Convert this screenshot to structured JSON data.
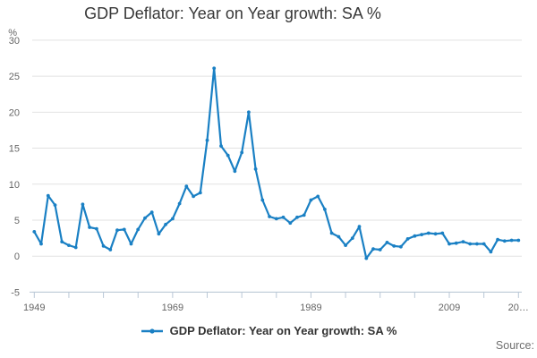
{
  "title": "GDP Deflator: Year on Year growth: SA %",
  "legend": {
    "label": "GDP Deflator: Year on Year growth: SA %"
  },
  "source_label": "Source:",
  "y_axis": {
    "unit": "%",
    "ticks": [
      30,
      25,
      20,
      15,
      10,
      5,
      0,
      -5
    ]
  },
  "x_axis": {
    "tick_interval_years": 5,
    "labels": [
      {
        "text": "1949",
        "year": 1949
      },
      {
        "text": "1969",
        "year": 1969
      },
      {
        "text": "1989",
        "year": 1989
      },
      {
        "text": "2009",
        "year": 2009
      },
      {
        "text": "20…",
        "year": 2019
      }
    ]
  },
  "colors": {
    "line": "#1a80c4",
    "grid": "#e2e2e2",
    "axis": "#b9c7d6",
    "tick_text": "#666666",
    "title_text": "#383838",
    "legend_text": "#333333",
    "source_text": "#6e6e6e"
  },
  "chart_data": {
    "type": "line",
    "title": "GDP Deflator: Year on Year growth: SA %",
    "xlabel": "",
    "ylabel": "%",
    "ylim": [
      -5,
      30
    ],
    "xlim": [
      1949,
      2019
    ],
    "grid": true,
    "legend_position": "bottom",
    "x": [
      1949,
      1950,
      1951,
      1952,
      1953,
      1954,
      1955,
      1956,
      1957,
      1958,
      1959,
      1960,
      1961,
      1962,
      1963,
      1964,
      1965,
      1966,
      1967,
      1968,
      1969,
      1970,
      1971,
      1972,
      1973,
      1974,
      1975,
      1976,
      1977,
      1978,
      1979,
      1980,
      1981,
      1982,
      1983,
      1984,
      1985,
      1986,
      1987,
      1988,
      1989,
      1990,
      1991,
      1992,
      1993,
      1994,
      1995,
      1996,
      1997,
      1998,
      1999,
      2000,
      2001,
      2002,
      2003,
      2004,
      2005,
      2006,
      2007,
      2008,
      2009,
      2010,
      2011,
      2012,
      2013,
      2014,
      2015,
      2016,
      2017,
      2018,
      2019
    ],
    "series": [
      {
        "name": "GDP Deflator: Year on Year growth: SA %",
        "values": [
          3.4,
          1.7,
          8.4,
          7.1,
          2.0,
          1.5,
          1.2,
          7.2,
          4.0,
          3.8,
          1.4,
          0.9,
          3.6,
          3.7,
          1.7,
          3.7,
          5.3,
          6.1,
          3.1,
          4.4,
          5.2,
          7.3,
          9.7,
          8.3,
          8.8,
          16.1,
          26.1,
          15.3,
          14.0,
          11.8,
          14.4,
          20.0,
          12.1,
          7.8,
          5.5,
          5.2,
          5.4,
          4.6,
          5.4,
          5.7,
          7.8,
          8.3,
          6.5,
          3.2,
          2.7,
          1.5,
          2.5,
          4.1,
          -0.3,
          1.0,
          0.9,
          1.9,
          1.4,
          1.3,
          2.4,
          2.8,
          3.0,
          3.2,
          3.1,
          3.2,
          1.7,
          1.8,
          2.0,
          1.7,
          1.7,
          1.7,
          0.6,
          2.3,
          2.1,
          2.2,
          2.2
        ]
      }
    ]
  }
}
